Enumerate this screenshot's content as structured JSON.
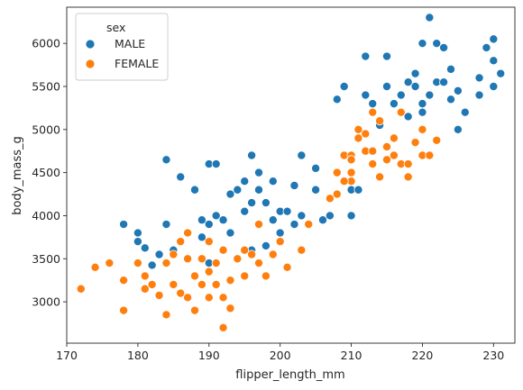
{
  "chart_data": {
    "type": "scatter",
    "xlabel": "flipper_length_mm",
    "ylabel": "body_mass_g",
    "xlim": [
      170,
      233
    ],
    "ylim": [
      2520,
      6420
    ],
    "xticks": [
      170,
      180,
      190,
      200,
      210,
      220,
      230
    ],
    "yticks": [
      3000,
      3500,
      4000,
      4500,
      5000,
      5500,
      6000
    ],
    "grid": false,
    "legend": {
      "title": "sex",
      "placement": "top-left"
    },
    "series": [
      {
        "name": "MALE",
        "color": "#1f77b4",
        "points": [
          [
            178,
            3900
          ],
          [
            180,
            3800
          ],
          [
            180,
            3700
          ],
          [
            181,
            3625
          ],
          [
            182,
            3425
          ],
          [
            183,
            3550
          ],
          [
            184,
            3900
          ],
          [
            184,
            4650
          ],
          [
            185,
            3600
          ],
          [
            186,
            4450
          ],
          [
            187,
            3800
          ],
          [
            188,
            4300
          ],
          [
            189,
            3950
          ],
          [
            189,
            3750
          ],
          [
            190,
            4600
          ],
          [
            190,
            3900
          ],
          [
            190,
            3450
          ],
          [
            191,
            4600
          ],
          [
            191,
            4000
          ],
          [
            192,
            3950
          ],
          [
            193,
            4250
          ],
          [
            193,
            3800
          ],
          [
            194,
            4300
          ],
          [
            195,
            4400
          ],
          [
            195,
            4050
          ],
          [
            196,
            4700
          ],
          [
            196,
            4150
          ],
          [
            196,
            3600
          ],
          [
            197,
            4500
          ],
          [
            197,
            4300
          ],
          [
            198,
            4150
          ],
          [
            198,
            3650
          ],
          [
            199,
            4400
          ],
          [
            199,
            3950
          ],
          [
            200,
            4050
          ],
          [
            200,
            3800
          ],
          [
            201,
            4050
          ],
          [
            202,
            3900
          ],
          [
            202,
            4350
          ],
          [
            203,
            4700
          ],
          [
            203,
            4000
          ],
          [
            205,
            4550
          ],
          [
            205,
            4300
          ],
          [
            206,
            3950
          ],
          [
            207,
            4000
          ],
          [
            208,
            5350
          ],
          [
            209,
            5500
          ],
          [
            210,
            4300
          ],
          [
            210,
            4000
          ],
          [
            211,
            4300
          ],
          [
            212,
            5850
          ],
          [
            212,
            5400
          ],
          [
            213,
            5300
          ],
          [
            214,
            5050
          ],
          [
            215,
            5850
          ],
          [
            215,
            5500
          ],
          [
            216,
            5300
          ],
          [
            217,
            5400
          ],
          [
            218,
            5550
          ],
          [
            218,
            5150
          ],
          [
            219,
            5500
          ],
          [
            219,
            5650
          ],
          [
            220,
            6000
          ],
          [
            220,
            5300
          ],
          [
            220,
            5200
          ],
          [
            221,
            6300
          ],
          [
            221,
            5400
          ],
          [
            222,
            6000
          ],
          [
            222,
            5550
          ],
          [
            223,
            5950
          ],
          [
            223,
            5550
          ],
          [
            224,
            5700
          ],
          [
            224,
            5350
          ],
          [
            225,
            5450
          ],
          [
            225,
            5000
          ],
          [
            226,
            5200
          ],
          [
            228,
            5600
          ],
          [
            228,
            5400
          ],
          [
            229,
            5950
          ],
          [
            230,
            6050
          ],
          [
            230,
            5800
          ],
          [
            230,
            5500
          ],
          [
            231,
            5650
          ]
        ]
      },
      {
        "name": "FEMALE",
        "color": "#ff7f0e",
        "points": [
          [
            172,
            3150
          ],
          [
            174,
            3400
          ],
          [
            176,
            3450
          ],
          [
            178,
            3250
          ],
          [
            178,
            2900
          ],
          [
            180,
            3450
          ],
          [
            181,
            3300
          ],
          [
            181,
            3150
          ],
          [
            182,
            3200
          ],
          [
            183,
            3075
          ],
          [
            184,
            2850
          ],
          [
            184,
            3450
          ],
          [
            185,
            3550
          ],
          [
            185,
            3200
          ],
          [
            186,
            3700
          ],
          [
            186,
            3100
          ],
          [
            187,
            3800
          ],
          [
            187,
            3500
          ],
          [
            187,
            3050
          ],
          [
            188,
            3300
          ],
          [
            188,
            2900
          ],
          [
            189,
            3500
          ],
          [
            189,
            3200
          ],
          [
            190,
            3700
          ],
          [
            190,
            3350
          ],
          [
            190,
            3050
          ],
          [
            191,
            3450
          ],
          [
            191,
            3200
          ],
          [
            192,
            3600
          ],
          [
            192,
            3050
          ],
          [
            192,
            2700
          ],
          [
            193,
            3250
          ],
          [
            193,
            2925
          ],
          [
            194,
            3500
          ],
          [
            195,
            3600
          ],
          [
            195,
            3300
          ],
          [
            196,
            3550
          ],
          [
            197,
            3900
          ],
          [
            197,
            3450
          ],
          [
            198,
            3300
          ],
          [
            199,
            3550
          ],
          [
            200,
            3700
          ],
          [
            201,
            3400
          ],
          [
            203,
            3600
          ],
          [
            204,
            3900
          ],
          [
            207,
            4200
          ],
          [
            208,
            4500
          ],
          [
            208,
            4250
          ],
          [
            209,
            4700
          ],
          [
            210,
            4700
          ],
          [
            210,
            4500
          ],
          [
            210,
            4400
          ],
          [
            211,
            4900
          ],
          [
            212,
            4750
          ],
          [
            213,
            4750
          ],
          [
            213,
            4600
          ],
          [
            214,
            4450
          ],
          [
            215,
            4650
          ],
          [
            215,
            4800
          ],
          [
            216,
            4700
          ],
          [
            217,
            5200
          ],
          [
            217,
            4600
          ],
          [
            218,
            4450
          ],
          [
            219,
            4850
          ],
          [
            220,
            4700
          ],
          [
            221,
            4700
          ],
          [
            222,
            4875
          ],
          [
            209,
            4400
          ],
          [
            210,
            4650
          ],
          [
            211,
            5000
          ],
          [
            212,
            4950
          ],
          [
            213,
            5200
          ],
          [
            214,
            5100
          ],
          [
            216,
            4900
          ],
          [
            218,
            4600
          ],
          [
            220,
            5000
          ]
        ]
      }
    ]
  }
}
